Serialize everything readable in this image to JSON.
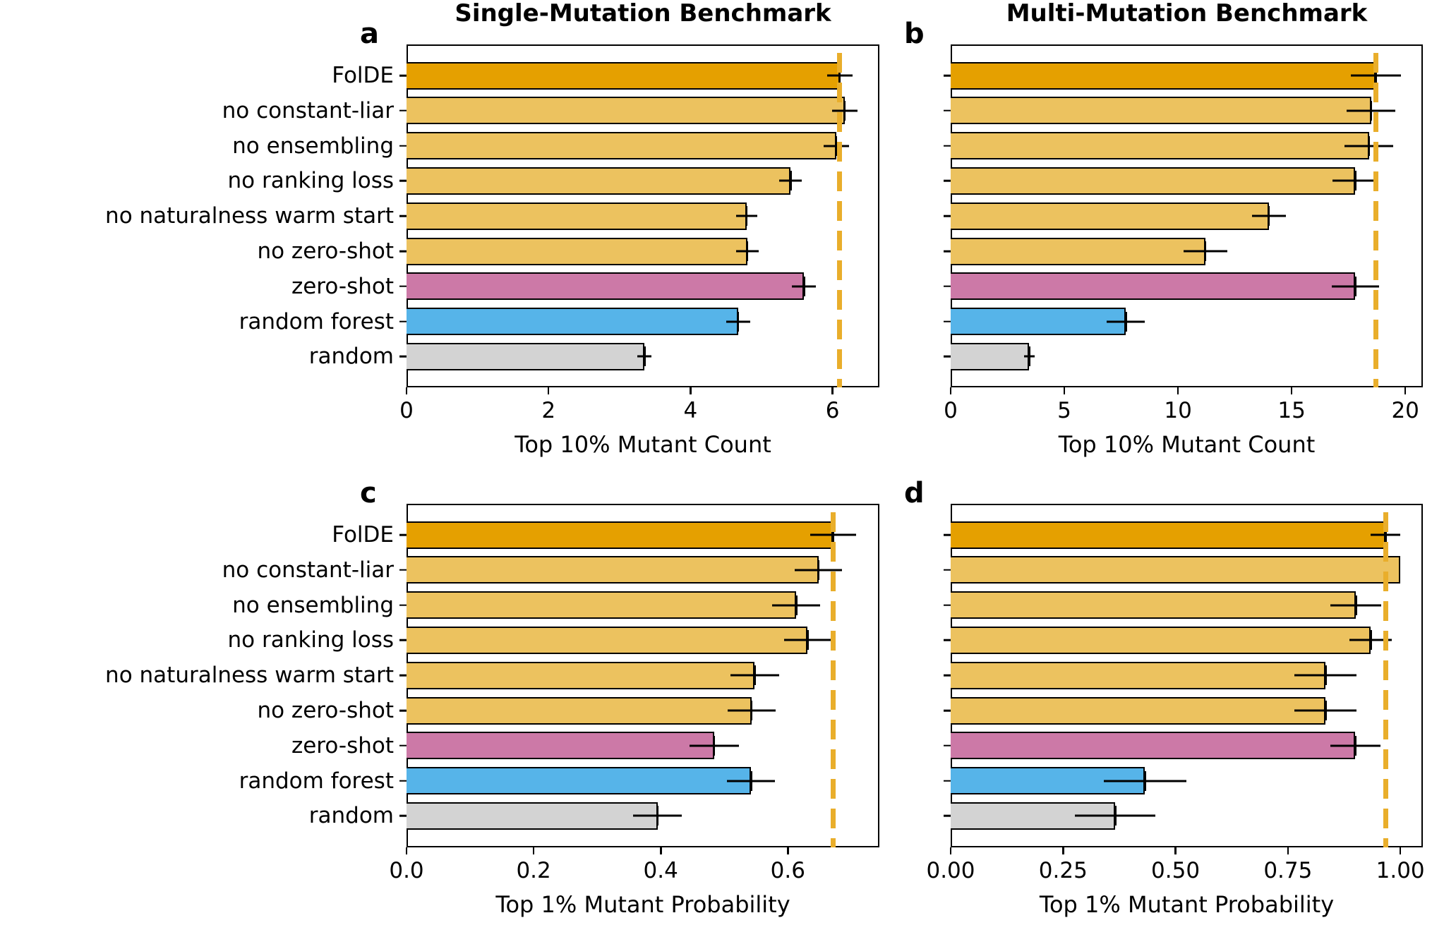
{
  "figure": {
    "panels": [
      {
        "letter": "a",
        "title": "Single-Mutation Benchmark",
        "xlabel": "Top 10% Mutant Count"
      },
      {
        "letter": "b",
        "title": "Multi-Mutation Benchmark",
        "xlabel": "Top 10% Mutant Count"
      },
      {
        "letter": "c",
        "title": "",
        "xlabel": "Top 1% Mutant Probability"
      },
      {
        "letter": "d",
        "title": "",
        "xlabel": "Top 1% Mutant Probability"
      }
    ],
    "categories": [
      "FolDE",
      "no constant-liar",
      "no ensembling",
      "no ranking loss",
      "no naturalness warm start",
      "no zero-shot",
      "zero-shot",
      "random forest",
      "random"
    ],
    "colors": {
      "FolDE": "#e5a000",
      "ablation": "#ecc25f",
      "zero-shot": "#cc79a7",
      "random forest": "#56b4e9",
      "random": "#d3d3d3",
      "reference_line": "#e9ae2b"
    }
  },
  "chart_data": [
    {
      "type": "bar",
      "orientation": "horizontal",
      "panel": "a",
      "title": "Single-Mutation Benchmark",
      "xlabel": "Top 10% Mutant Count",
      "ylabel": "",
      "categories": [
        "FolDE",
        "no constant-liar",
        "no ensembling",
        "no ranking loss",
        "no naturalness warm start",
        "no zero-shot",
        "zero-shot",
        "random forest",
        "random"
      ],
      "values": [
        6.1,
        6.17,
        6.05,
        5.41,
        4.79,
        4.8,
        5.6,
        4.67,
        3.35
      ],
      "errors": [
        0.18,
        0.18,
        0.18,
        0.16,
        0.15,
        0.16,
        0.17,
        0.17,
        0.1
      ],
      "reference_line": 6.1,
      "xlim": [
        0,
        6.66
      ],
      "xticks": [
        0,
        2,
        4,
        6
      ],
      "xticklabels": [
        "0",
        "2",
        "4",
        "6"
      ],
      "grid": false
    },
    {
      "type": "bar",
      "orientation": "horizontal",
      "panel": "b",
      "title": "Multi-Mutation Benchmark",
      "xlabel": "Top 10% Mutant Count",
      "ylabel": "",
      "categories": [
        "FolDE",
        "no constant-liar",
        "no ensembling",
        "no ranking loss",
        "no naturalness warm start",
        "no zero-shot",
        "zero-shot",
        "random forest",
        "random"
      ],
      "values": [
        18.7,
        18.5,
        18.4,
        17.8,
        14.0,
        11.2,
        17.8,
        7.7,
        3.45
      ],
      "errors": [
        1.1,
        1.07,
        1.07,
        1.0,
        0.75,
        0.97,
        1.05,
        0.83,
        0.23
      ],
      "reference_line": 18.7,
      "xlim": [
        0,
        20.77
      ],
      "xticks": [
        0,
        5,
        10,
        15,
        20
      ],
      "xticklabels": [
        "0",
        "5",
        "10",
        "15",
        "20"
      ],
      "grid": false
    },
    {
      "type": "bar",
      "orientation": "horizontal",
      "panel": "c",
      "title": "",
      "xlabel": "Top 1% Mutant Probability",
      "ylabel": "",
      "categories": [
        "FolDE",
        "no constant-liar",
        "no ensembling",
        "no ranking loss",
        "no naturalness warm start",
        "no zero-shot",
        "zero-shot",
        "random forest",
        "random"
      ],
      "values": [
        0.671,
        0.648,
        0.613,
        0.631,
        0.548,
        0.543,
        0.484,
        0.542,
        0.395
      ],
      "errors": [
        0.036,
        0.037,
        0.038,
        0.037,
        0.038,
        0.038,
        0.039,
        0.038,
        0.038
      ],
      "reference_line": 0.671,
      "xlim": [
        0,
        0.744
      ],
      "xticks": [
        0.0,
        0.2,
        0.4,
        0.6
      ],
      "xticklabels": [
        "0.0",
        "0.2",
        "0.4",
        "0.6"
      ],
      "grid": false
    },
    {
      "type": "bar",
      "orientation": "horizontal",
      "panel": "d",
      "title": "",
      "xlabel": "Top 1% Mutant Probability",
      "ylabel": "",
      "categories": [
        "FolDE",
        "no constant-liar",
        "no ensembling",
        "no ranking loss",
        "no naturalness warm start",
        "no zero-shot",
        "zero-shot",
        "random forest",
        "random"
      ],
      "values": [
        0.967,
        1.0,
        0.901,
        0.934,
        0.834,
        0.834,
        0.9,
        0.432,
        0.366
      ],
      "errors": [
        0.033,
        0.0,
        0.056,
        0.047,
        0.069,
        0.069,
        0.056,
        0.092,
        0.089
      ],
      "reference_line": 0.967,
      "xlim": [
        0,
        1.05
      ],
      "xticks": [
        0.0,
        0.25,
        0.5,
        0.75,
        1.0
      ],
      "xticklabels": [
        "0.00",
        "0.25",
        "0.50",
        "0.75",
        "1.00"
      ],
      "grid": false
    }
  ]
}
